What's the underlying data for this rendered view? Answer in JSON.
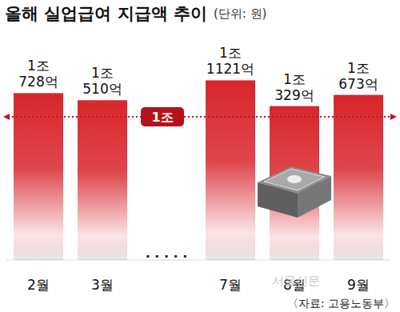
{
  "chart_data": {
    "type": "bar",
    "title": "올해 실업급여 지급액 추이",
    "subtitle": "(단위: 원)",
    "categories": [
      "2월",
      "3월",
      null,
      "7월",
      "8월",
      "9월"
    ],
    "values": [
      10728,
      10510,
      null,
      11121,
      10329,
      10673
    ],
    "value_labels": [
      "1조 728억",
      "1조 510억",
      null,
      "1조 1121억",
      "1조 329억",
      "1조 673억"
    ],
    "data_labels": true,
    "tick_labels": "x",
    "color": "#d8262c",
    "ylim": [
      5600,
      11500
    ],
    "grid": false,
    "gap_label": "· · · · ·",
    "reference_line": {
      "value": 10000,
      "label": "1조"
    },
    "source": "〈자료: 고용노동부〉",
    "watermark": "서울신문"
  }
}
